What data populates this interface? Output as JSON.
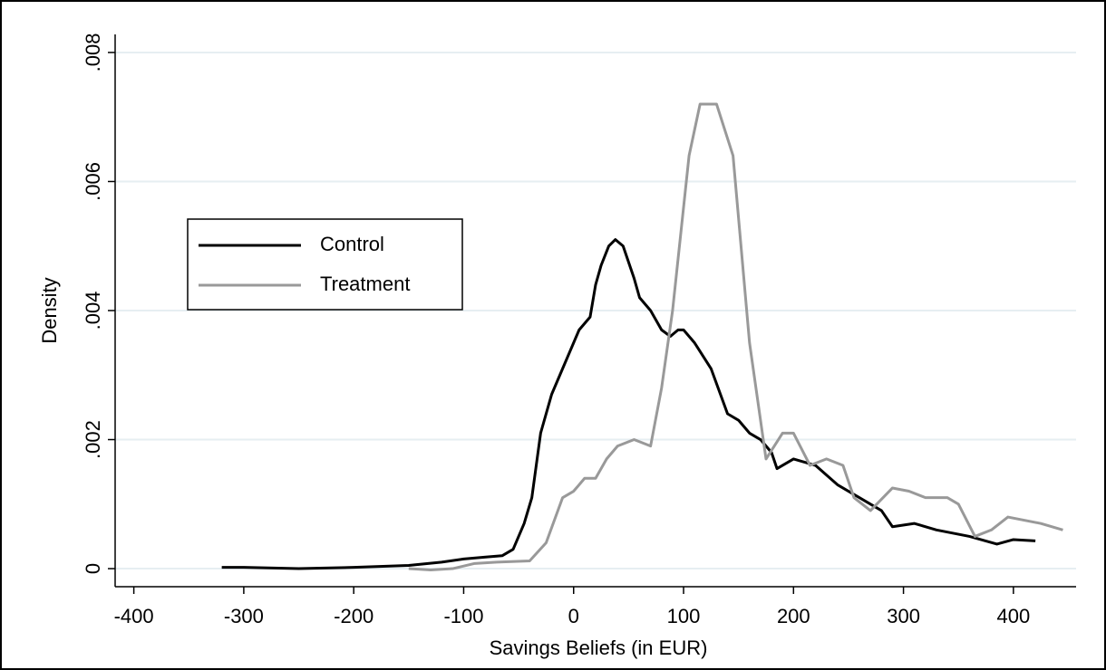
{
  "chart_data": {
    "type": "line",
    "x_label": "Savings Beliefs (in EUR)",
    "y_label": "Density",
    "xlim": [
      -417,
      457
    ],
    "ylim": [
      -0.00028,
      0.00828
    ],
    "xticks": [
      -400,
      -300,
      -200,
      -100,
      0,
      100,
      200,
      300,
      400
    ],
    "yticks": [
      0,
      {
        "value": 0.002,
        "label": ".002"
      },
      {
        "value": 0.004,
        "label": ".004"
      },
      {
        "value": 0.006,
        "label": ".006"
      },
      {
        "value": 0.008,
        "label": ".008"
      }
    ],
    "grid": true,
    "legend": "upper left",
    "series": [
      {
        "name": "Control",
        "color": "#000000",
        "x": [
          -320,
          -300,
          -250,
          -200,
          -150,
          -120,
          -100,
          -80,
          -65,
          -55,
          -45,
          -38,
          -30,
          -20,
          -10,
          0,
          5,
          15,
          20,
          25,
          32,
          38,
          45,
          55,
          60,
          70,
          80,
          88,
          95,
          100,
          110,
          125,
          140,
          150,
          160,
          170,
          180,
          185,
          200,
          220,
          240,
          260,
          280,
          290,
          310,
          330,
          360,
          385,
          400,
          420
        ],
        "values": [
          2e-05,
          2e-05,
          0.0,
          2e-05,
          5e-05,
          0.0001,
          0.00015,
          0.00018,
          0.0002,
          0.0003,
          0.0007,
          0.0011,
          0.0021,
          0.0027,
          0.0031,
          0.0035,
          0.0037,
          0.0039,
          0.0044,
          0.0047,
          0.005,
          0.0051,
          0.005,
          0.0045,
          0.0042,
          0.004,
          0.0037,
          0.0036,
          0.0037,
          0.0037,
          0.0035,
          0.0031,
          0.0024,
          0.0023,
          0.0021,
          0.002,
          0.0018,
          0.00155,
          0.0017,
          0.0016,
          0.0013,
          0.0011,
          0.0009,
          0.00065,
          0.0007,
          0.0006,
          0.0005,
          0.00038,
          0.00045,
          0.00043
        ]
      },
      {
        "name": "Treatment",
        "color": "#999999",
        "x": [
          -150,
          -130,
          -110,
          -90,
          -70,
          -40,
          -25,
          -10,
          0,
          10,
          20,
          30,
          40,
          55,
          70,
          80,
          90,
          105,
          115,
          130,
          145,
          160,
          175,
          190,
          200,
          215,
          230,
          245,
          255,
          270,
          290,
          305,
          320,
          340,
          350,
          365,
          380,
          395,
          425,
          445
        ],
        "values": [
          0.0,
          -2e-05,
          0.0,
          8e-05,
          0.0001,
          0.00012,
          0.0004,
          0.0011,
          0.0012,
          0.0014,
          0.0014,
          0.0017,
          0.0019,
          0.002,
          0.0019,
          0.0028,
          0.004,
          0.0064,
          0.0072,
          0.0072,
          0.0064,
          0.0035,
          0.0017,
          0.0021,
          0.0021,
          0.0016,
          0.0017,
          0.0016,
          0.0011,
          0.0009,
          0.00125,
          0.0012,
          0.0011,
          0.0011,
          0.001,
          0.0005,
          0.0006,
          0.0008,
          0.0007,
          0.0006
        ]
      }
    ]
  }
}
